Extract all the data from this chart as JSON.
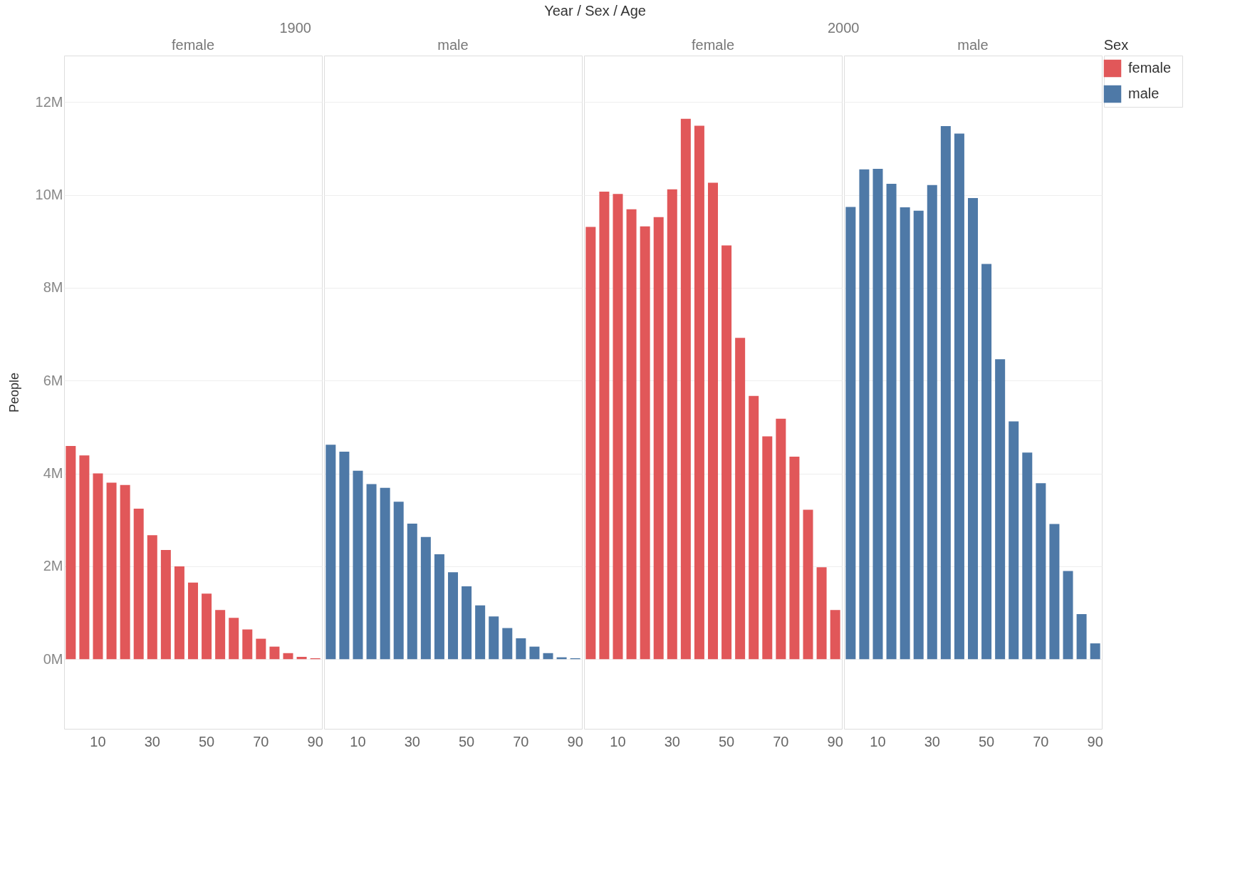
{
  "chart_data": [
    {
      "type": "bar",
      "title": "1900",
      "annotations": [
        "Year / Sex / Age"
      ],
      "ylabel": "People",
      "categories": [
        null,
        null,
        "10",
        null,
        null,
        null,
        "30",
        null,
        null,
        null,
        "50",
        null,
        null,
        null,
        "70",
        null,
        null,
        null,
        "90"
      ],
      "series": [
        {
          "name": "female",
          "color": "#e15759",
          "values": [
            4.59,
            4.39,
            4.0,
            3.8,
            3.75,
            3.24,
            2.67,
            2.35,
            2.0,
            1.65,
            1.41,
            1.06,
            0.89,
            0.64,
            0.44,
            0.27,
            0.13,
            0.05,
            0.02
          ]
        }
      ],
      "ylim": [
        -1.5,
        13
      ],
      "yticks": [
        {
          "value": 0,
          "label": "0M"
        },
        {
          "value": 2,
          "label": "2M"
        },
        {
          "value": 4,
          "label": "4M"
        },
        {
          "value": 6,
          "label": "6M"
        },
        {
          "value": 8,
          "label": "8M"
        },
        {
          "value": 10,
          "label": "10M"
        },
        {
          "value": 12,
          "label": "12M"
        }
      ],
      "grid": "y",
      "legend": "top right"
    },
    {
      "type": "bar",
      "categories": [
        null,
        null,
        "10",
        null,
        null,
        null,
        "30",
        null,
        null,
        null,
        "50",
        null,
        null,
        null,
        "70",
        null,
        null,
        null,
        "90"
      ],
      "series": [
        {
          "name": "male",
          "color": "#4e79a7",
          "values": [
            4.62,
            4.47,
            4.06,
            3.77,
            3.69,
            3.39,
            2.92,
            2.63,
            2.26,
            1.87,
            1.57,
            1.16,
            0.92,
            0.67,
            0.45,
            0.27,
            0.13,
            0.04,
            0.02
          ]
        }
      ],
      "ylim": [
        -1.5,
        13
      ],
      "yticks": [
        {
          "value": 0,
          "label": null
        },
        {
          "value": 2,
          "label": null
        },
        {
          "value": 4,
          "label": null
        },
        {
          "value": 6,
          "label": null
        },
        {
          "value": 8,
          "label": null
        },
        {
          "value": 10,
          "label": null
        },
        {
          "value": 12,
          "label": null
        }
      ],
      "grid": "y",
      "legend": "top right",
      "tick_labels": "x"
    },
    {
      "type": "bar",
      "title": "2000",
      "categories": [
        null,
        null,
        "10",
        null,
        null,
        null,
        "30",
        null,
        null,
        null,
        "50",
        null,
        null,
        null,
        "70",
        null,
        null,
        null,
        "90"
      ],
      "series": [
        {
          "name": "female",
          "color": "#e15759",
          "values": [
            9.31,
            10.07,
            10.02,
            9.69,
            9.32,
            9.52,
            10.12,
            11.64,
            11.49,
            10.26,
            8.91,
            6.92,
            5.67,
            4.8,
            5.18,
            4.36,
            3.22,
            1.98,
            1.06
          ]
        }
      ],
      "ylim": [
        -1.5,
        13
      ],
      "yticks": [
        {
          "value": 0,
          "label": null
        },
        {
          "value": 2,
          "label": null
        },
        {
          "value": 4,
          "label": null
        },
        {
          "value": 6,
          "label": null
        },
        {
          "value": 8,
          "label": null
        },
        {
          "value": 10,
          "label": null
        },
        {
          "value": 12,
          "label": null
        }
      ],
      "grid": "y",
      "legend": "top right",
      "tick_labels": "x"
    },
    {
      "type": "bar",
      "legend_title": "Sex",
      "categories": [
        null,
        null,
        "10",
        null,
        null,
        null,
        "30",
        null,
        null,
        null,
        "50",
        null,
        null,
        null,
        "70",
        null,
        null,
        null,
        "90"
      ],
      "series": [
        {
          "name": "male",
          "color": "#4e79a7",
          "values": [
            9.74,
            10.55,
            10.56,
            10.24,
            9.73,
            9.66,
            10.21,
            11.48,
            11.32,
            9.93,
            8.51,
            6.46,
            5.12,
            4.45,
            3.79,
            2.91,
            1.9,
            0.97,
            0.34
          ]
        }
      ],
      "ylim": [
        -1.5,
        13
      ],
      "yticks": [
        {
          "value": 0,
          "label": null
        },
        {
          "value": 2,
          "label": null
        },
        {
          "value": 4,
          "label": null
        },
        {
          "value": 6,
          "label": null
        },
        {
          "value": 8,
          "label": null
        },
        {
          "value": 10,
          "label": null
        },
        {
          "value": 12,
          "label": null
        }
      ],
      "grid": "y",
      "legend": "top right",
      "tick_labels": "x"
    }
  ]
}
